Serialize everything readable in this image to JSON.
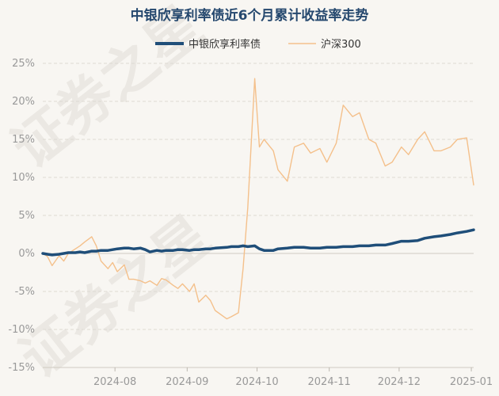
{
  "chart_data": {
    "type": "line",
    "title": "中银欣享利率债近6个月累计收益率走势",
    "ylim": [
      -15,
      25
    ],
    "y_ticks": [
      25,
      20,
      15,
      10,
      5,
      0,
      -5,
      -10,
      -15
    ],
    "y_tick_labels": [
      "25%",
      "20%",
      "15%",
      "10%",
      "5%",
      "0%",
      "-5%",
      "-10%",
      "-15%"
    ],
    "xlim": [
      "2024-07-01",
      "2025-01-02"
    ],
    "x_ticks": [
      "2024-08-01",
      "2024-09-01",
      "2024-10-01",
      "2024-11-01",
      "2024-12-01",
      "2025-01-01"
    ],
    "x_tick_labels": [
      "2024-08",
      "2024-09",
      "2024-10",
      "2024-11",
      "2024-12",
      "2025-01"
    ],
    "grid": true,
    "legend_position": "top-center",
    "series": [
      {
        "name": "中银欣享利率债",
        "color": "#1f4e79",
        "points": [
          [
            "2024-07-01",
            0.0
          ],
          [
            "2024-07-03",
            -0.1
          ],
          [
            "2024-07-05",
            -0.2
          ],
          [
            "2024-07-08",
            -0.1
          ],
          [
            "2024-07-10",
            0.0
          ],
          [
            "2024-07-12",
            0.1
          ],
          [
            "2024-07-15",
            0.1
          ],
          [
            "2024-07-17",
            0.2
          ],
          [
            "2024-07-19",
            0.1
          ],
          [
            "2024-07-22",
            0.3
          ],
          [
            "2024-07-24",
            0.3
          ],
          [
            "2024-07-26",
            0.4
          ],
          [
            "2024-07-29",
            0.4
          ],
          [
            "2024-07-31",
            0.5
          ],
          [
            "2024-08-02",
            0.6
          ],
          [
            "2024-08-05",
            0.7
          ],
          [
            "2024-08-07",
            0.7
          ],
          [
            "2024-08-09",
            0.6
          ],
          [
            "2024-08-12",
            0.7
          ],
          [
            "2024-08-14",
            0.5
          ],
          [
            "2024-08-16",
            0.2
          ],
          [
            "2024-08-19",
            0.4
          ],
          [
            "2024-08-21",
            0.3
          ],
          [
            "2024-08-23",
            0.4
          ],
          [
            "2024-08-26",
            0.4
          ],
          [
            "2024-08-28",
            0.5
          ],
          [
            "2024-08-30",
            0.5
          ],
          [
            "2024-09-02",
            0.4
          ],
          [
            "2024-09-04",
            0.5
          ],
          [
            "2024-09-06",
            0.5
          ],
          [
            "2024-09-09",
            0.6
          ],
          [
            "2024-09-11",
            0.6
          ],
          [
            "2024-09-13",
            0.7
          ],
          [
            "2024-09-18",
            0.8
          ],
          [
            "2024-09-20",
            0.9
          ],
          [
            "2024-09-23",
            0.9
          ],
          [
            "2024-09-25",
            1.0
          ],
          [
            "2024-09-27",
            0.9
          ],
          [
            "2024-09-30",
            1.0
          ],
          [
            "2024-10-02",
            0.6
          ],
          [
            "2024-10-04",
            0.4
          ],
          [
            "2024-10-08",
            0.4
          ],
          [
            "2024-10-10",
            0.6
          ],
          [
            "2024-10-14",
            0.7
          ],
          [
            "2024-10-17",
            0.8
          ],
          [
            "2024-10-21",
            0.8
          ],
          [
            "2024-10-24",
            0.7
          ],
          [
            "2024-10-28",
            0.7
          ],
          [
            "2024-10-31",
            0.8
          ],
          [
            "2024-11-04",
            0.8
          ],
          [
            "2024-11-07",
            0.9
          ],
          [
            "2024-11-11",
            0.9
          ],
          [
            "2024-11-14",
            1.0
          ],
          [
            "2024-11-18",
            1.0
          ],
          [
            "2024-11-21",
            1.1
          ],
          [
            "2024-11-25",
            1.1
          ],
          [
            "2024-11-28",
            1.3
          ],
          [
            "2024-12-02",
            1.6
          ],
          [
            "2024-12-05",
            1.6
          ],
          [
            "2024-12-09",
            1.7
          ],
          [
            "2024-12-12",
            2.0
          ],
          [
            "2024-12-16",
            2.2
          ],
          [
            "2024-12-19",
            2.3
          ],
          [
            "2024-12-23",
            2.5
          ],
          [
            "2024-12-26",
            2.7
          ],
          [
            "2024-12-30",
            2.9
          ],
          [
            "2025-01-02",
            3.1
          ]
        ]
      },
      {
        "name": "沪深300",
        "color": "#f4c08b",
        "points": [
          [
            "2024-07-01",
            0.0
          ],
          [
            "2024-07-03",
            -0.4
          ],
          [
            "2024-07-05",
            -1.6
          ],
          [
            "2024-07-08",
            -0.3
          ],
          [
            "2024-07-10",
            -1.0
          ],
          [
            "2024-07-12",
            0.0
          ],
          [
            "2024-07-15",
            0.6
          ],
          [
            "2024-07-17",
            1.0
          ],
          [
            "2024-07-19",
            1.5
          ],
          [
            "2024-07-22",
            2.2
          ],
          [
            "2024-07-24",
            1.0
          ],
          [
            "2024-07-26",
            -1.0
          ],
          [
            "2024-07-29",
            -2.0
          ],
          [
            "2024-07-31",
            -1.2
          ],
          [
            "2024-08-02",
            -2.4
          ],
          [
            "2024-08-05",
            -1.5
          ],
          [
            "2024-08-07",
            -3.4
          ],
          [
            "2024-08-09",
            -3.4
          ],
          [
            "2024-08-12",
            -3.6
          ],
          [
            "2024-08-14",
            -3.9
          ],
          [
            "2024-08-16",
            -3.6
          ],
          [
            "2024-08-19",
            -4.2
          ],
          [
            "2024-08-21",
            -3.3
          ],
          [
            "2024-08-23",
            -3.5
          ],
          [
            "2024-08-26",
            -4.2
          ],
          [
            "2024-08-28",
            -4.6
          ],
          [
            "2024-08-30",
            -4.0
          ],
          [
            "2024-09-02",
            -5.0
          ],
          [
            "2024-09-04",
            -4.0
          ],
          [
            "2024-09-06",
            -6.4
          ],
          [
            "2024-09-09",
            -5.5
          ],
          [
            "2024-09-11",
            -6.2
          ],
          [
            "2024-09-13",
            -7.5
          ],
          [
            "2024-09-18",
            -8.6
          ],
          [
            "2024-09-20",
            -8.3
          ],
          [
            "2024-09-23",
            -7.8
          ],
          [
            "2024-09-25",
            -2.0
          ],
          [
            "2024-09-27",
            6.0
          ],
          [
            "2024-09-30",
            23.0
          ],
          [
            "2024-10-02",
            14.0
          ],
          [
            "2024-10-04",
            15.0
          ],
          [
            "2024-10-08",
            13.5
          ],
          [
            "2024-10-10",
            11.0
          ],
          [
            "2024-10-14",
            9.5
          ],
          [
            "2024-10-17",
            14.0
          ],
          [
            "2024-10-21",
            14.5
          ],
          [
            "2024-10-24",
            13.2
          ],
          [
            "2024-10-28",
            13.8
          ],
          [
            "2024-10-31",
            12.0
          ],
          [
            "2024-11-04",
            14.5
          ],
          [
            "2024-11-07",
            19.5
          ],
          [
            "2024-11-11",
            18.0
          ],
          [
            "2024-11-14",
            18.5
          ],
          [
            "2024-11-18",
            15.0
          ],
          [
            "2024-11-21",
            14.5
          ],
          [
            "2024-11-25",
            11.5
          ],
          [
            "2024-11-28",
            12.0
          ],
          [
            "2024-12-02",
            14.0
          ],
          [
            "2024-12-05",
            13.0
          ],
          [
            "2024-12-09",
            15.0
          ],
          [
            "2024-12-12",
            16.0
          ],
          [
            "2024-12-16",
            13.5
          ],
          [
            "2024-12-19",
            13.5
          ],
          [
            "2024-12-23",
            14.0
          ],
          [
            "2024-12-26",
            15.0
          ],
          [
            "2024-12-30",
            15.2
          ],
          [
            "2025-01-02",
            9.0
          ]
        ]
      }
    ]
  },
  "watermark": [
    "证券之星",
    "证券之星"
  ]
}
